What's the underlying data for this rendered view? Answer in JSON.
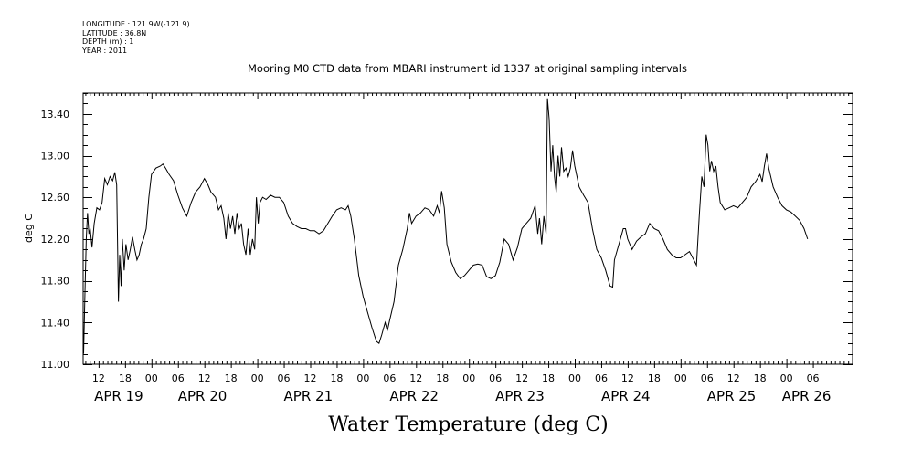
{
  "metadata": {
    "longitude": "LONGITUDE : 121.9W(-121.9)",
    "latitude": "LATITUDE : 36.8N",
    "depth": "DEPTH (m) : 1",
    "year": "YEAR : 2011"
  },
  "chart_data": {
    "type": "line",
    "title": "Mooring M0 CTD data from MBARI instrument id 1337 at original sampling intervals",
    "xlabel": "Water Temperature (deg C)",
    "ylabel": "deg C",
    "ylim": [
      11.0,
      13.6
    ],
    "yticks": [
      "11.00",
      "11.40",
      "11.80",
      "12.20",
      "12.60",
      "13.00",
      "13.40"
    ],
    "xlim_hours_after_apr19_00": [
      -15.5,
      159.0
    ],
    "hour_ticks": [
      {
        "t": -12,
        "label": "12"
      },
      {
        "t": -6,
        "label": "18"
      },
      {
        "t": 0,
        "label": "00"
      },
      {
        "t": 6,
        "label": "06"
      },
      {
        "t": 12,
        "label": "12"
      },
      {
        "t": 18,
        "label": "18"
      },
      {
        "t": 24,
        "label": "00"
      },
      {
        "t": 30,
        "label": "06"
      },
      {
        "t": 36,
        "label": "12"
      },
      {
        "t": 42,
        "label": "18"
      },
      {
        "t": 48,
        "label": "00"
      },
      {
        "t": 54,
        "label": "06"
      },
      {
        "t": 60,
        "label": "12"
      },
      {
        "t": 66,
        "label": "18"
      },
      {
        "t": 72,
        "label": "00"
      },
      {
        "t": 78,
        "label": "06"
      },
      {
        "t": 84,
        "label": "12"
      },
      {
        "t": 90,
        "label": "18"
      },
      {
        "t": 96,
        "label": "00"
      },
      {
        "t": 102,
        "label": "06"
      },
      {
        "t": 108,
        "label": "12"
      },
      {
        "t": 114,
        "label": "18"
      },
      {
        "t": 120,
        "label": "00"
      },
      {
        "t": 126,
        "label": "06"
      },
      {
        "t": 132,
        "label": "12"
      },
      {
        "t": 138,
        "label": "18"
      },
      {
        "t": 144,
        "label": "00"
      },
      {
        "t": 150,
        "label": "06"
      }
    ],
    "date_labels": [
      {
        "t": -13,
        "label": "APR 19"
      },
      {
        "t": 6,
        "label": "APR 20"
      },
      {
        "t": 30,
        "label": "APR 21"
      },
      {
        "t": 54,
        "label": "APR 22"
      },
      {
        "t": 78,
        "label": "APR 23"
      },
      {
        "t": 102,
        "label": "APR 24"
      },
      {
        "t": 126,
        "label": "APR 25"
      },
      {
        "t": 143,
        "label": "APR 26"
      }
    ],
    "series": [
      {
        "color": "#000000",
        "points": [
          [
            -15.4,
            11.1
          ],
          [
            -15.1,
            11.65
          ],
          [
            -14.8,
            12.2
          ],
          [
            -14.5,
            12.45
          ],
          [
            -14.2,
            12.25
          ],
          [
            -13.9,
            12.3
          ],
          [
            -13.5,
            12.12
          ],
          [
            -13.0,
            12.35
          ],
          [
            -12.4,
            12.5
          ],
          [
            -11.8,
            12.48
          ],
          [
            -11.2,
            12.55
          ],
          [
            -10.6,
            12.78
          ],
          [
            -10.0,
            12.72
          ],
          [
            -9.4,
            12.8
          ],
          [
            -8.8,
            12.76
          ],
          [
            -8.3,
            12.84
          ],
          [
            -7.9,
            12.72
          ],
          [
            -7.5,
            11.6
          ],
          [
            -7.2,
            12.05
          ],
          [
            -6.9,
            11.75
          ],
          [
            -6.6,
            12.2
          ],
          [
            -6.2,
            11.9
          ],
          [
            -5.8,
            12.15
          ],
          [
            -5.3,
            12.0
          ],
          [
            -4.8,
            12.1
          ],
          [
            -4.3,
            12.22
          ],
          [
            -3.8,
            12.1
          ],
          [
            -3.3,
            12.0
          ],
          [
            -2.8,
            12.05
          ],
          [
            -2.3,
            12.15
          ],
          [
            -1.8,
            12.2
          ],
          [
            -1.2,
            12.3
          ],
          [
            -0.6,
            12.6
          ],
          [
            0.0,
            12.82
          ],
          [
            1.0,
            12.88
          ],
          [
            2.0,
            12.9
          ],
          [
            2.6,
            12.92
          ],
          [
            3.2,
            12.88
          ],
          [
            4.0,
            12.82
          ],
          [
            5.0,
            12.76
          ],
          [
            6.0,
            12.62
          ],
          [
            7.0,
            12.5
          ],
          [
            8.0,
            12.42
          ],
          [
            9.0,
            12.55
          ],
          [
            10.0,
            12.65
          ],
          [
            11.0,
            12.7
          ],
          [
            12.0,
            12.78
          ],
          [
            12.8,
            12.72
          ],
          [
            13.5,
            12.65
          ],
          [
            14.5,
            12.6
          ],
          [
            15.2,
            12.48
          ],
          [
            15.8,
            12.52
          ],
          [
            16.4,
            12.4
          ],
          [
            16.9,
            12.2
          ],
          [
            17.4,
            12.45
          ],
          [
            17.9,
            12.3
          ],
          [
            18.4,
            12.42
          ],
          [
            18.9,
            12.25
          ],
          [
            19.4,
            12.45
          ],
          [
            19.9,
            12.3
          ],
          [
            20.4,
            12.35
          ],
          [
            20.9,
            12.15
          ],
          [
            21.4,
            12.05
          ],
          [
            21.9,
            12.3
          ],
          [
            22.4,
            12.05
          ],
          [
            22.9,
            12.2
          ],
          [
            23.4,
            12.1
          ],
          [
            23.8,
            12.6
          ],
          [
            24.2,
            12.35
          ],
          [
            24.6,
            12.55
          ],
          [
            25.2,
            12.6
          ],
          [
            26.0,
            12.58
          ],
          [
            27.0,
            12.62
          ],
          [
            28.0,
            12.6
          ],
          [
            29.0,
            12.6
          ],
          [
            30.0,
            12.55
          ],
          [
            31.0,
            12.42
          ],
          [
            32.0,
            12.35
          ],
          [
            33.0,
            12.32
          ],
          [
            34.0,
            12.3
          ],
          [
            35.0,
            12.3
          ],
          [
            36.0,
            12.28
          ],
          [
            37.0,
            12.28
          ],
          [
            38.0,
            12.25
          ],
          [
            39.0,
            12.28
          ],
          [
            40.0,
            12.35
          ],
          [
            41.0,
            12.42
          ],
          [
            42.0,
            12.48
          ],
          [
            43.0,
            12.5
          ],
          [
            44.0,
            12.48
          ],
          [
            44.6,
            12.52
          ],
          [
            45.2,
            12.42
          ],
          [
            46.0,
            12.2
          ],
          [
            47.0,
            11.85
          ],
          [
            48.0,
            11.65
          ],
          [
            49.0,
            11.5
          ],
          [
            50.0,
            11.35
          ],
          [
            51.0,
            11.22
          ],
          [
            51.6,
            11.2
          ],
          [
            52.2,
            11.28
          ],
          [
            53.0,
            11.4
          ],
          [
            53.5,
            11.32
          ],
          [
            54.0,
            11.42
          ],
          [
            55.0,
            11.6
          ],
          [
            56.0,
            11.95
          ],
          [
            57.0,
            12.1
          ],
          [
            58.0,
            12.3
          ],
          [
            58.5,
            12.45
          ],
          [
            59.0,
            12.35
          ],
          [
            60.0,
            12.42
          ],
          [
            61.0,
            12.45
          ],
          [
            62.0,
            12.5
          ],
          [
            63.0,
            12.48
          ],
          [
            64.0,
            12.42
          ],
          [
            64.8,
            12.52
          ],
          [
            65.3,
            12.45
          ],
          [
            65.8,
            12.66
          ],
          [
            66.4,
            12.5
          ],
          [
            67.0,
            12.15
          ],
          [
            68.0,
            11.98
          ],
          [
            69.0,
            11.88
          ],
          [
            70.0,
            11.82
          ],
          [
            71.0,
            11.85
          ],
          [
            72.0,
            11.9
          ],
          [
            73.0,
            11.95
          ],
          [
            74.0,
            11.96
          ],
          [
            75.0,
            11.95
          ],
          [
            76.0,
            11.84
          ],
          [
            77.0,
            11.82
          ],
          [
            78.0,
            11.85
          ],
          [
            79.0,
            11.98
          ],
          [
            80.0,
            12.2
          ],
          [
            81.0,
            12.15
          ],
          [
            82.0,
            12.0
          ],
          [
            83.0,
            12.12
          ],
          [
            84.0,
            12.3
          ],
          [
            85.0,
            12.35
          ],
          [
            86.0,
            12.4
          ],
          [
            87.0,
            12.52
          ],
          [
            87.6,
            12.25
          ],
          [
            88.0,
            12.4
          ],
          [
            88.5,
            12.15
          ],
          [
            89.0,
            12.42
          ],
          [
            89.5,
            12.25
          ],
          [
            89.8,
            13.55
          ],
          [
            90.2,
            13.35
          ],
          [
            90.6,
            12.85
          ],
          [
            91.0,
            13.1
          ],
          [
            91.4,
            12.8
          ],
          [
            91.8,
            12.65
          ],
          [
            92.2,
            13.0
          ],
          [
            92.6,
            12.8
          ],
          [
            93.0,
            13.08
          ],
          [
            93.5,
            12.85
          ],
          [
            94.0,
            12.88
          ],
          [
            94.5,
            12.8
          ],
          [
            95.0,
            12.88
          ],
          [
            95.5,
            13.05
          ],
          [
            96.0,
            12.9
          ],
          [
            97.0,
            12.7
          ],
          [
            98.0,
            12.62
          ],
          [
            99.0,
            12.55
          ],
          [
            100.0,
            12.3
          ],
          [
            101.0,
            12.1
          ],
          [
            102.0,
            12.02
          ],
          [
            103.0,
            11.9
          ],
          [
            104.0,
            11.75
          ],
          [
            104.6,
            11.74
          ],
          [
            105.0,
            12.0
          ],
          [
            106.0,
            12.15
          ],
          [
            107.0,
            12.3
          ],
          [
            107.5,
            12.3
          ],
          [
            108.0,
            12.2
          ],
          [
            109.0,
            12.1
          ],
          [
            110.0,
            12.18
          ],
          [
            111.0,
            12.22
          ],
          [
            112.0,
            12.25
          ],
          [
            113.0,
            12.35
          ],
          [
            114.0,
            12.3
          ],
          [
            115.0,
            12.28
          ],
          [
            116.0,
            12.2
          ],
          [
            117.0,
            12.1
          ],
          [
            118.0,
            12.05
          ],
          [
            119.0,
            12.02
          ],
          [
            120.0,
            12.02
          ],
          [
            121.0,
            12.05
          ],
          [
            122.0,
            12.08
          ],
          [
            123.0,
            12.0
          ],
          [
            123.6,
            11.95
          ],
          [
            124.2,
            12.4
          ],
          [
            124.8,
            12.8
          ],
          [
            125.3,
            12.7
          ],
          [
            125.8,
            13.2
          ],
          [
            126.2,
            13.1
          ],
          [
            126.6,
            12.85
          ],
          [
            127.0,
            12.95
          ],
          [
            127.5,
            12.85
          ],
          [
            128.0,
            12.9
          ],
          [
            128.5,
            12.7
          ],
          [
            129.0,
            12.55
          ],
          [
            130.0,
            12.48
          ],
          [
            131.0,
            12.5
          ],
          [
            132.0,
            12.52
          ],
          [
            133.0,
            12.5
          ],
          [
            134.0,
            12.55
          ],
          [
            135.0,
            12.6
          ],
          [
            136.0,
            12.7
          ],
          [
            137.0,
            12.75
          ],
          [
            138.0,
            12.82
          ],
          [
            138.5,
            12.75
          ],
          [
            139.0,
            12.9
          ],
          [
            139.5,
            13.02
          ],
          [
            140.0,
            12.88
          ],
          [
            141.0,
            12.7
          ],
          [
            142.0,
            12.6
          ],
          [
            143.0,
            12.52
          ],
          [
            144.0,
            12.48
          ],
          [
            145.0,
            12.46
          ],
          [
            146.0,
            12.42
          ],
          [
            147.0,
            12.38
          ],
          [
            148.0,
            12.3
          ],
          [
            148.8,
            12.2
          ]
        ]
      }
    ]
  }
}
